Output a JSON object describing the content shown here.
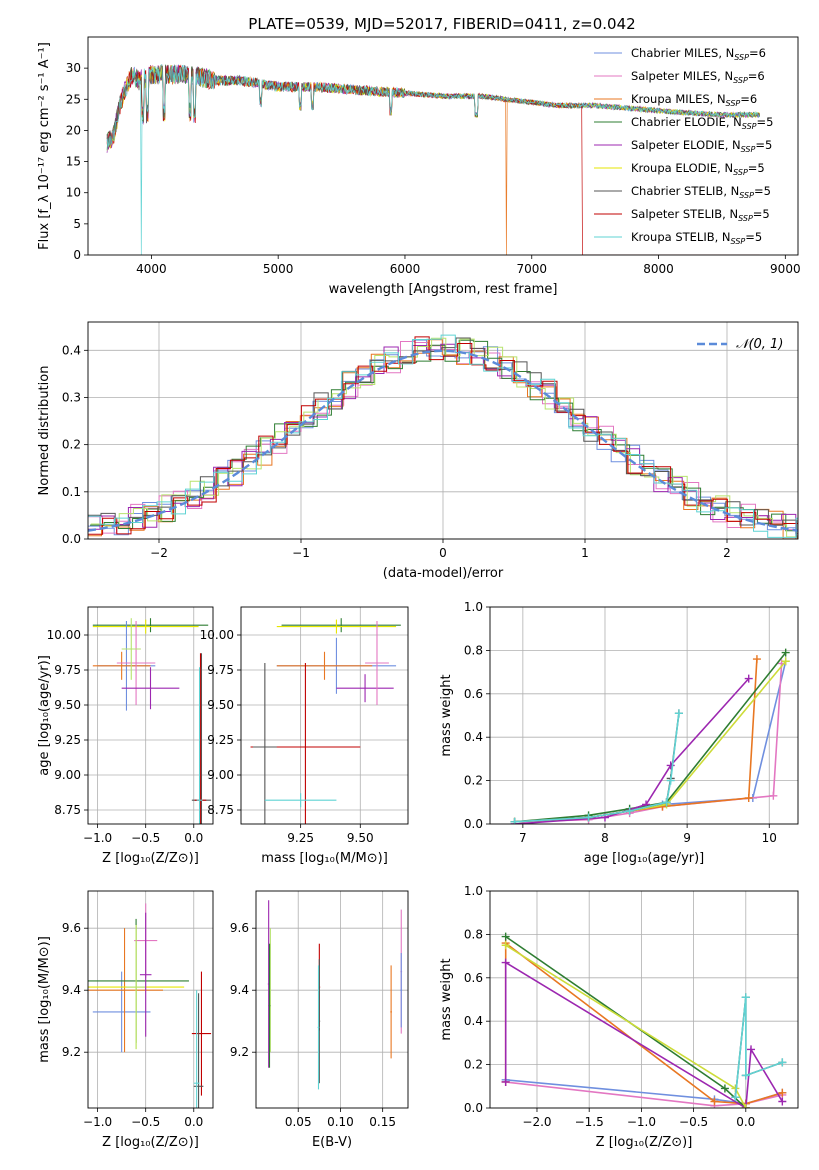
{
  "figure": {
    "title": "PLATE=0539, MJD=52017, FIBERID=0411, z=0.042"
  },
  "colors": {
    "Chabrier MILES": "#6f8fdf",
    "Salpeter MILES": "#e377c2",
    "Kroupa MILES": "#bcbd22",
    "Chabrier ELODIE": "#2e7d32",
    "Salpeter ELODIE": "#9c27b0",
    "Kroupa ELODIE": "#e6e600",
    "Chabrier STELIB": "#555555",
    "Salpeter STELIB": "#c00000",
    "Kroupa STELIB": "#5fd3d3",
    "orange": "#e87722",
    "lightgreen": "#b7e36e",
    "normal_curve": "#5b8bd9",
    "grid": "#b0b0b0"
  },
  "chart_data": [
    {
      "type": "line",
      "id": "spectrum",
      "xlabel": "wavelength [Angstrom, rest frame]",
      "ylabel": "Flux [f_λ 10⁻¹⁷ erg cm⁻² s⁻¹ A⁻¹]",
      "xlim": [
        3500,
        9100
      ],
      "ylim": [
        0,
        35
      ],
      "xticks": [
        4000,
        5000,
        6000,
        7000,
        8000,
        9000
      ],
      "yticks": [
        0,
        5,
        10,
        15,
        20,
        25,
        30
      ],
      "grid": false,
      "legend_position": "top-right",
      "legend": [
        {
          "name": "Chabrier MILES",
          "sub": "SSP",
          "n": "=6"
        },
        {
          "name": "Salpeter MILES",
          "sub": "SSP",
          "n": "=6"
        },
        {
          "name": "Kroupa MILES",
          "sub": "SSP",
          "n": "=6"
        },
        {
          "name": "Chabrier ELODIE",
          "sub": "SSP",
          "n": "=5"
        },
        {
          "name": "Salpeter ELODIE",
          "sub": "SSP",
          "n": "=5"
        },
        {
          "name": "Kroupa ELODIE",
          "sub": "SSP",
          "n": "=5"
        },
        {
          "name": "Chabrier STELIB",
          "sub": "SSP",
          "n": "=5"
        },
        {
          "name": "Salpeter STELIB",
          "sub": "SSP",
          "n": "=5"
        },
        {
          "name": "Kroupa STELIB",
          "sub": "SSP",
          "n": "=5"
        }
      ],
      "continuum": {
        "x": [
          3650,
          3700,
          3750,
          3800,
          3850,
          3900,
          4000,
          4100,
          4300,
          4500,
          4700,
          5000,
          5300,
          5600,
          6000,
          6300,
          6600,
          6800,
          7000,
          7200,
          7500,
          7800,
          8100,
          8500,
          8800
        ],
        "y": [
          18,
          19,
          24,
          27,
          29,
          28,
          29,
          29,
          29,
          28,
          28,
          27,
          27,
          26.5,
          26,
          25.5,
          25.5,
          25,
          24.5,
          24,
          24,
          23.5,
          23,
          22.5,
          22.5
        ]
      },
      "absorption_lines": [
        3934,
        3969,
        4102,
        4304,
        4340,
        4861,
        5175,
        5270,
        5890,
        6563
      ],
      "drops": [
        {
          "series": "Kroupa STELIB",
          "x": 3920
        },
        {
          "series": "Kroupa MILES",
          "x": 6800
        },
        {
          "series": "Salpeter STELIB",
          "x": 7400
        }
      ]
    },
    {
      "type": "line",
      "id": "residual-histogram",
      "xlabel": "(data-model)/error",
      "ylabel": "Normed distribution",
      "xlim": [
        -2.5,
        2.5
      ],
      "ylim": [
        0,
        0.46
      ],
      "xticks": [
        -2,
        -1,
        0,
        1,
        2
      ],
      "yticks": [
        0.0,
        0.1,
        0.2,
        0.3,
        0.4
      ],
      "grid": true,
      "legend_position": "top-right",
      "legend": [
        {
          "name": "𝒩(0, 1)"
        }
      ],
      "bin_width": 0.1
    },
    {
      "type": "scatter",
      "id": "age-vs-Z",
      "xlabel": "Z [log₁₀(Z/Z⊙)]",
      "ylabel": "age  [log₁₀(age/yr)]",
      "xlim": [
        -1.1,
        0.2
      ],
      "ylim": [
        8.65,
        10.2
      ],
      "xticks": [
        -1.0,
        -0.5,
        0.0
      ],
      "yticks": [
        8.75,
        9.0,
        9.25,
        9.5,
        9.75,
        10.0
      ],
      "grid": true
    },
    {
      "type": "scatter",
      "id": "age-vs-mass",
      "xlabel": "mass [log₁₀(M/M⊙)]",
      "xlim": [
        9.0,
        9.7
      ],
      "ylim": [
        8.65,
        10.2
      ],
      "xticks": [
        9.25,
        9.5
      ],
      "yticks": [
        8.75,
        9.0,
        9.25,
        9.5,
        9.75,
        10.0
      ],
      "grid": true
    },
    {
      "type": "line",
      "id": "massweight-vs-age",
      "xlabel": "age  [log₁₀(age/yr)]",
      "ylabel": "mass weight",
      "xlim": [
        6.6,
        10.35
      ],
      "ylim": [
        0,
        1
      ],
      "xticks": [
        7,
        8,
        9,
        10
      ],
      "yticks": [
        0.0,
        0.2,
        0.4,
        0.6,
        0.8,
        1.0
      ],
      "grid": true,
      "series": [
        {
          "name": "Chabrier MILES",
          "x": [
            6.9,
            7.8,
            8.3,
            8.7,
            9.8,
            10.2
          ],
          "y": [
            0.01,
            0.03,
            0.06,
            0.09,
            0.12,
            0.75
          ]
        },
        {
          "name": "Salpeter MILES",
          "x": [
            6.9,
            7.8,
            8.3,
            8.7,
            10.05,
            10.15
          ],
          "y": [
            0.01,
            0.02,
            0.05,
            0.08,
            0.13,
            0.74
          ]
        },
        {
          "name": "Kroupa MILES",
          "x": [
            6.9,
            7.8,
            8.3,
            8.7,
            9.75,
            9.85
          ],
          "y": [
            0.01,
            0.03,
            0.06,
            0.08,
            0.12,
            0.76
          ]
        },
        {
          "name": "Chabrier ELODIE",
          "x": [
            6.9,
            7.8,
            8.3,
            8.75,
            10.2
          ],
          "y": [
            0.01,
            0.04,
            0.07,
            0.1,
            0.79
          ]
        },
        {
          "name": "Salpeter ELODIE",
          "x": [
            6.9,
            8.0,
            8.5,
            8.8,
            9.75
          ],
          "y": [
            0.0,
            0.03,
            0.09,
            0.27,
            0.67
          ]
        },
        {
          "name": "Kroupa ELODIE",
          "x": [
            6.9,
            7.8,
            8.3,
            8.75,
            10.2
          ],
          "y": [
            0.01,
            0.03,
            0.06,
            0.09,
            0.75
          ]
        },
        {
          "name": "Chabrier STELIB",
          "x": [
            6.9,
            7.8,
            8.3,
            8.75,
            8.8,
            8.9
          ],
          "y": [
            0.01,
            0.03,
            0.06,
            0.1,
            0.21,
            0.51
          ]
        },
        {
          "name": "Kroupa STELIB",
          "x": [
            6.9,
            7.8,
            8.3,
            8.75,
            8.8,
            8.9
          ],
          "y": [
            0.01,
            0.03,
            0.06,
            0.1,
            0.2,
            0.51
          ]
        }
      ]
    },
    {
      "type": "scatter",
      "id": "mass-vs-Z",
      "xlabel": "Z [log₁₀(Z/Z⊙)]",
      "ylabel": "mass [log₁₀(M/M⊙)]",
      "xlim": [
        -1.1,
        0.2
      ],
      "ylim": [
        9.02,
        9.72
      ],
      "xticks": [
        -1.0,
        -0.5,
        0.0
      ],
      "yticks": [
        9.2,
        9.4,
        9.6
      ],
      "grid": true
    },
    {
      "type": "scatter",
      "id": "mass-vs-ebv",
      "xlabel": "E(B-V)",
      "xlim": [
        0.0,
        0.18
      ],
      "ylim": [
        9.02,
        9.72
      ],
      "xticks": [
        0.05,
        0.1,
        0.15
      ],
      "yticks": [
        9.2,
        9.4,
        9.6
      ],
      "grid": true
    },
    {
      "type": "line",
      "id": "massweight-vs-Z",
      "xlabel": "Z [log₁₀(Z/Z⊙)]",
      "ylabel": "mass weight",
      "xlim": [
        -2.45,
        0.5
      ],
      "ylim": [
        0,
        1
      ],
      "xticks": [
        -2.0,
        -1.5,
        -1.0,
        -0.5,
        0.0
      ],
      "yticks": [
        0.0,
        0.2,
        0.4,
        0.6,
        0.8,
        1.0
      ],
      "grid": true,
      "series": [
        {
          "name": "Chabrier MILES",
          "x": [
            -2.3,
            -0.3,
            0.0,
            0.35
          ],
          "y": [
            0.13,
            0.04,
            0.02,
            0.07
          ]
        },
        {
          "name": "Salpeter MILES",
          "x": [
            -2.3,
            -0.3,
            0.0,
            0.35
          ],
          "y": [
            0.12,
            0.01,
            0.02,
            0.06
          ]
        },
        {
          "name": "Kroupa MILES",
          "x": [
            -2.3,
            -2.3,
            -0.3,
            0.0,
            0.35
          ],
          "y": [
            0.12,
            0.76,
            0.03,
            0.02,
            0.07
          ]
        },
        {
          "name": "Chabrier ELODIE",
          "x": [
            -2.3,
            -0.2,
            0.0
          ],
          "y": [
            0.79,
            0.09,
            0.0
          ]
        },
        {
          "name": "Salpeter ELODIE",
          "x": [
            -2.3,
            -2.3,
            0.0,
            0.05,
            0.35
          ],
          "y": [
            0.12,
            0.67,
            0.0,
            0.27,
            0.03
          ]
        },
        {
          "name": "Kroupa ELODIE",
          "x": [
            -2.3,
            -0.1,
            0.0
          ],
          "y": [
            0.75,
            0.09,
            0.0
          ]
        },
        {
          "name": "Chabrier STELIB",
          "x": [
            -0.1,
            0.0,
            0.0,
            0.35
          ],
          "y": [
            0.05,
            0.51,
            0.15,
            0.21
          ]
        },
        {
          "name": "Kroupa STELIB",
          "x": [
            -0.1,
            0.0,
            0.0,
            0.35
          ],
          "y": [
            0.05,
            0.51,
            0.15,
            0.21
          ]
        }
      ]
    }
  ]
}
